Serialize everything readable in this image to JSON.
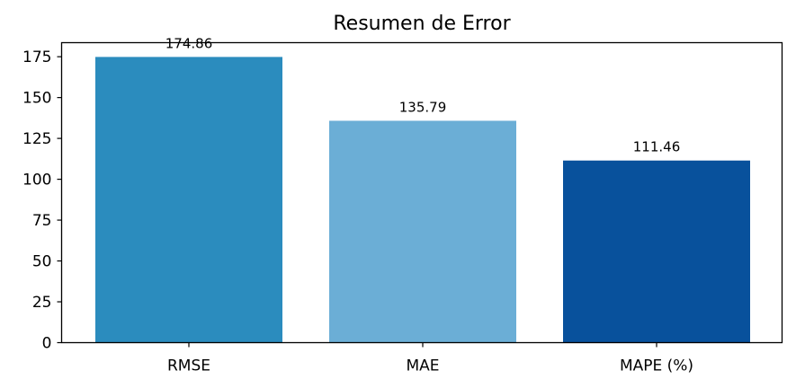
{
  "chart_data": {
    "type": "bar",
    "title": "Resumen de Error",
    "xlabel": "",
    "ylabel": "",
    "categories": [
      "RMSE",
      "MAE",
      "MAPE (%)"
    ],
    "values": [
      174.86,
      135.79,
      111.46
    ],
    "value_labels": [
      "174.86",
      "135.79",
      "111.46"
    ],
    "colors": [
      "#2b8cbe",
      "#6baed6",
      "#08519c"
    ],
    "ylim": [
      0,
      183.6
    ],
    "yticks": [
      0,
      25,
      50,
      75,
      100,
      125,
      150,
      175
    ],
    "grid": false,
    "legend": "none"
  }
}
